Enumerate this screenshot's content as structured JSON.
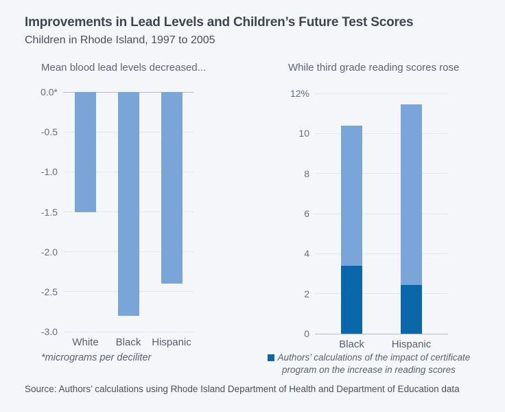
{
  "header": {
    "title": "Improvements in Lead Levels and Children’s Future Test Scores",
    "subtitle": "Children in Rhode Island, 1997 to 2005"
  },
  "chart_data": [
    {
      "id": "lead-levels",
      "type": "bar",
      "title": "Mean blood lead levels decreased...",
      "categories": [
        "White",
        "Black",
        "Hispanic"
      ],
      "values": [
        -1.5,
        -2.8,
        -2.4
      ],
      "bar_color": "#7aa5d8",
      "ylim": [
        -3.0,
        0.0
      ],
      "yticks": [
        0,
        -0.5,
        -1,
        -1.5,
        -2,
        -2.5,
        -3
      ],
      "ytick_labels": [
        "0.0*",
        "-0.5",
        "-1.0",
        "-1.5",
        "-2.0",
        "-2.5",
        "-3.0"
      ],
      "footnote": "*micrograms per deciliter",
      "grid": true,
      "legend_position": "none"
    },
    {
      "id": "reading-scores",
      "type": "stacked-bar",
      "title": "While third grade reading scores rose",
      "categories": [
        "Black",
        "Hispanic"
      ],
      "totals": [
        10.4,
        11.45
      ],
      "certificate_impact": [
        3.4,
        2.45
      ],
      "total_color": "#7aa5d8",
      "certificate_color": "#0a67a9",
      "ylim": [
        0,
        12
      ],
      "yticks": [
        0,
        2,
        4,
        6,
        8,
        10,
        12
      ],
      "ytick_labels": [
        "0",
        "2",
        "4",
        "6",
        "8",
        "10",
        "12%"
      ],
      "legend_label": "Authors’ calculations of the impact of certificate program on the increase in reading scores",
      "grid": true,
      "legend_position": "below"
    }
  ],
  "footer": {
    "source": "Source: Authors’ calculations using Rhode Island Department of Health and Department of Education data"
  }
}
